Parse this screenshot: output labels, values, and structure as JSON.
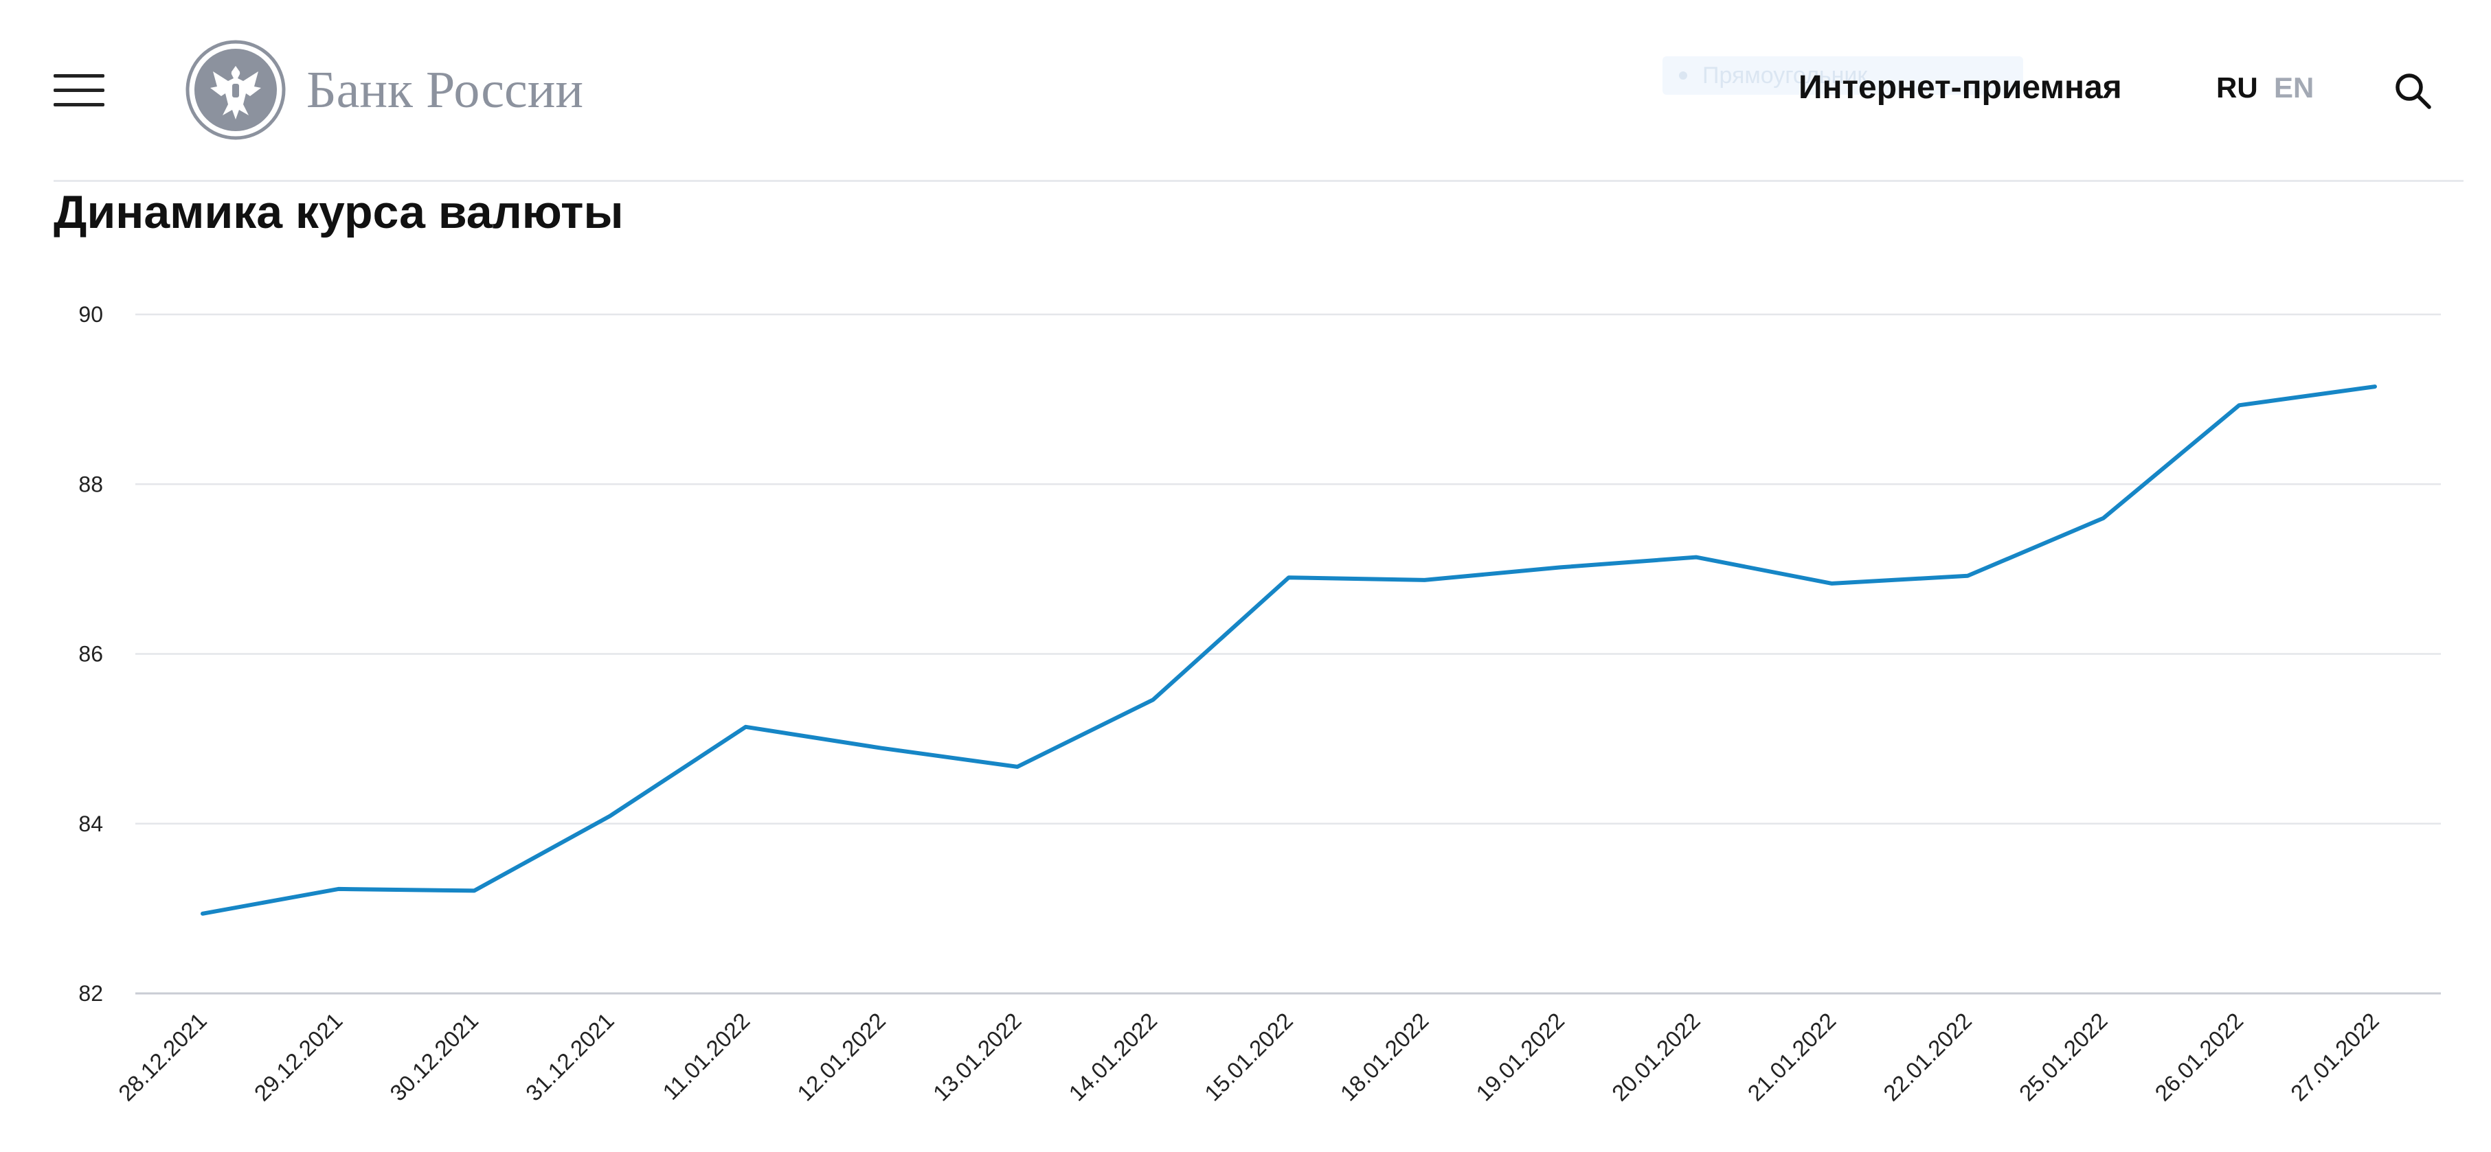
{
  "header": {
    "logo_text": "Банк России",
    "ghost_chip_text": "Прямоугольник",
    "internet_reception": "Интернет-приемная",
    "lang_ru": "RU",
    "lang_en": "EN",
    "icons": {
      "menu": "hamburger-menu-icon",
      "emblem": "double-headed-eagle-emblem",
      "search": "search-icon"
    }
  },
  "page": {
    "title": "Динамика курса валюты"
  },
  "colors": {
    "line": "#1686c6",
    "grid": "#e4e6ea",
    "axis": "#c9ccd4",
    "logo_gray": "#8c929e",
    "lang_inactive": "#a3a9b4"
  },
  "chart_data": {
    "type": "line",
    "title": "",
    "xlabel": "",
    "ylabel": "",
    "ylim": [
      82,
      90
    ],
    "yticks": [
      82,
      84,
      86,
      88,
      90
    ],
    "grid": true,
    "categories": [
      "28.12.2021",
      "29.12.2021",
      "30.12.2021",
      "31.12.2021",
      "11.01.2022",
      "12.01.2022",
      "13.01.2022",
      "14.01.2022",
      "15.01.2022",
      "18.01.2022",
      "19.01.2022",
      "20.01.2022",
      "21.01.2022",
      "22.01.2022",
      "25.01.2022",
      "26.01.2022",
      "27.01.2022"
    ],
    "series": [
      {
        "values": [
          82.94,
          83.23,
          83.21,
          84.09,
          85.14,
          84.89,
          84.67,
          85.46,
          86.9,
          86.87,
          87.02,
          87.14,
          86.83,
          86.92,
          87.6,
          88.93,
          89.15
        ]
      }
    ]
  }
}
